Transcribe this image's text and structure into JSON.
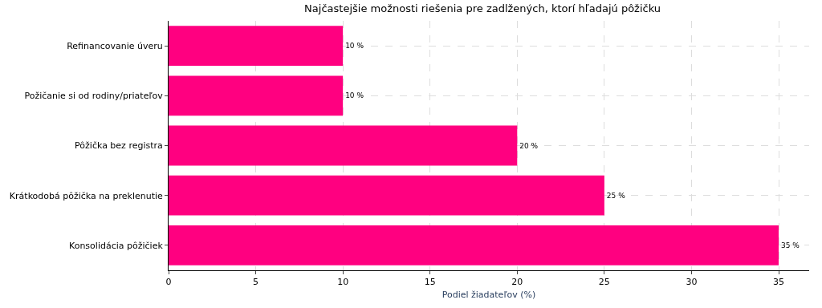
{
  "chart_data": {
    "type": "bar",
    "orientation": "horizontal",
    "title": "Najčastejšie možnosti riešenia pre zadlžených, ktorí hľadajú pôžičku",
    "xlabel": "Podiel žiadateľov (%)",
    "categories": [
      "Refinancovanie úveru",
      "Požičanie si od rodiny/priateľov",
      "Pôžička bez registra",
      "Krátkodobá pôžička na preklenutie",
      "Konsolidácia pôžičiek"
    ],
    "values": [
      10,
      10,
      20,
      25,
      35
    ],
    "value_labels": [
      "10 %",
      "10 %",
      "20 %",
      "25 %",
      "35 %"
    ],
    "color": "#ff0080",
    "xlim": [
      0,
      36.75
    ],
    "xticks": [
      0,
      5,
      10,
      15,
      20,
      25,
      30,
      35
    ],
    "grid": true
  }
}
